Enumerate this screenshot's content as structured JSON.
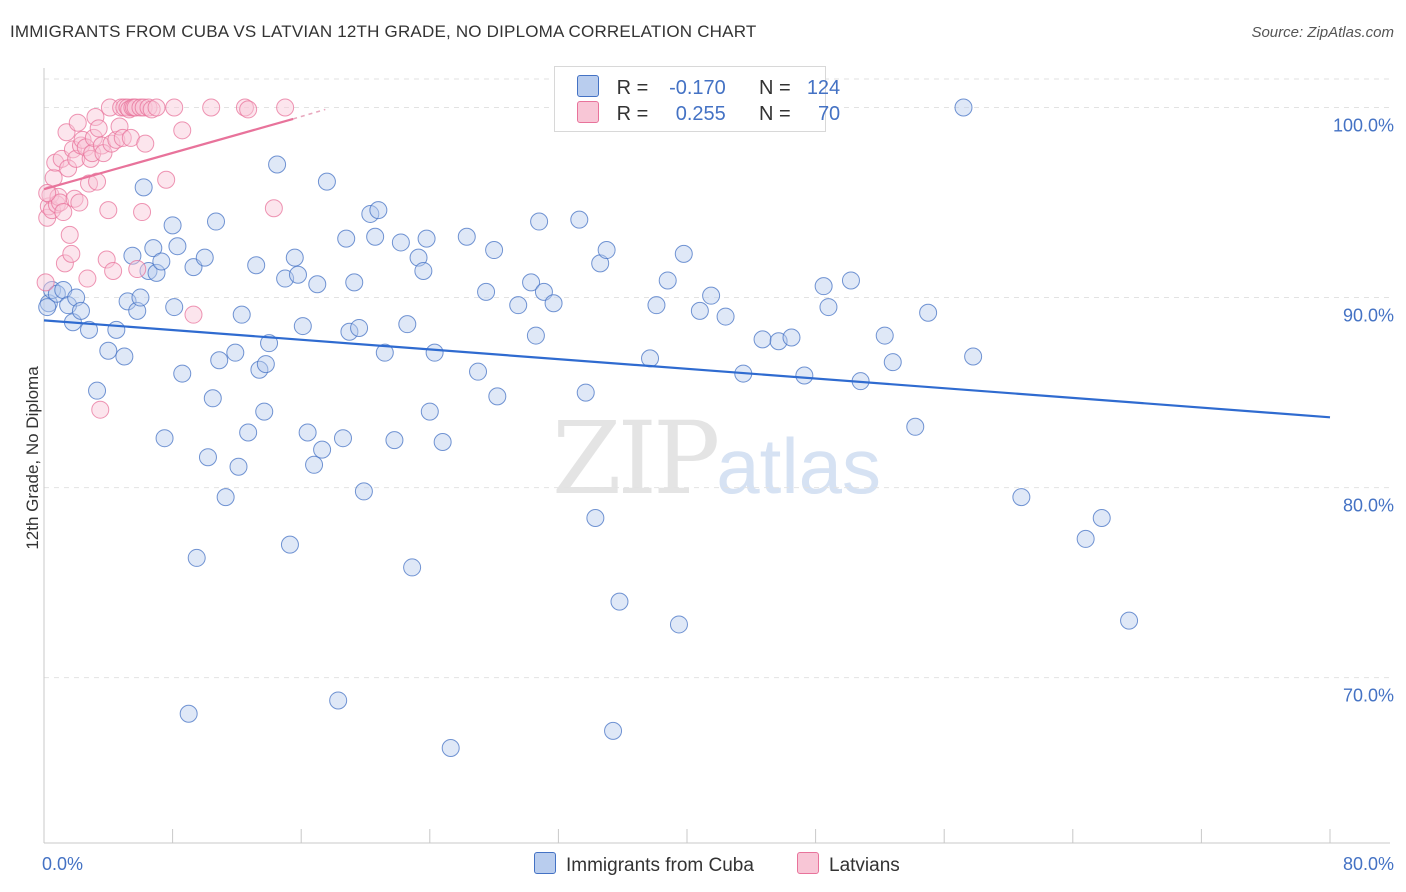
{
  "title": "IMMIGRANTS FROM CUBA VS LATVIAN 12TH GRADE, NO DIPLOMA CORRELATION CHART",
  "source": "Source: ZipAtlas.com",
  "watermark": {
    "zip": "ZIP",
    "atlas": "atlas"
  },
  "legend": {
    "rows": [
      {
        "r_label": "R =",
        "r_value": "-0.170",
        "n_label": "N =",
        "n_value": "124"
      },
      {
        "r_label": "R =",
        "r_value": "0.255",
        "n_label": "N =",
        "n_value": "70"
      }
    ]
  },
  "chart_data": {
    "type": "scatter",
    "title": "IMMIGRANTS FROM CUBA VS LATVIAN 12TH GRADE, NO DIPLOMA CORRELATION CHART",
    "xlabel": "",
    "ylabel": "12th Grade, No Diploma",
    "xlim": [
      0,
      80
    ],
    "ylim": [
      61.3,
      102.5
    ],
    "x_tick_labels": [
      "0.0%",
      "80.0%"
    ],
    "y_ticks": [
      70,
      80,
      90,
      100
    ],
    "y_tick_labels": [
      "70.0%",
      "80.0%",
      "90.0%",
      "100.0%"
    ],
    "grid": true,
    "legend_position": "top-center",
    "colors": {
      "cuba": "#4472c4",
      "latvians": "#e8739b"
    },
    "series": [
      {
        "name": "Immigrants from Cuba",
        "color": "#4472c4",
        "r": -0.17,
        "n": 124,
        "trend": {
          "x": [
            0,
            80
          ],
          "y": [
            88.8,
            83.7
          ]
        },
        "points": [
          [
            0.3,
            89.7
          ],
          [
            0.5,
            90.4
          ],
          [
            0.8,
            90.2
          ],
          [
            1.2,
            90.4
          ],
          [
            1.5,
            89.6
          ],
          [
            1.8,
            88.7
          ],
          [
            2.0,
            90.0
          ],
          [
            2.3,
            89.3
          ],
          [
            2.8,
            88.3
          ],
          [
            3.3,
            85.1
          ],
          [
            4.0,
            87.2
          ],
          [
            4.5,
            88.3
          ],
          [
            5.0,
            86.9
          ],
          [
            5.2,
            89.8
          ],
          [
            5.5,
            92.2
          ],
          [
            5.8,
            89.3
          ],
          [
            6.0,
            90.0
          ],
          [
            6.2,
            95.8
          ],
          [
            6.5,
            91.4
          ],
          [
            6.8,
            92.6
          ],
          [
            7.0,
            91.3
          ],
          [
            7.3,
            91.9
          ],
          [
            7.5,
            82.6
          ],
          [
            8.0,
            93.8
          ],
          [
            8.1,
            89.5
          ],
          [
            8.3,
            92.7
          ],
          [
            8.6,
            86.0
          ],
          [
            9.0,
            68.1
          ],
          [
            9.3,
            91.6
          ],
          [
            9.5,
            76.3
          ],
          [
            10.0,
            92.1
          ],
          [
            10.2,
            81.6
          ],
          [
            10.5,
            84.7
          ],
          [
            10.7,
            94.0
          ],
          [
            10.9,
            86.7
          ],
          [
            11.3,
            79.5
          ],
          [
            11.9,
            87.1
          ],
          [
            12.1,
            81.1
          ],
          [
            12.3,
            89.1
          ],
          [
            12.7,
            82.9
          ],
          [
            13.2,
            91.7
          ],
          [
            13.4,
            86.2
          ],
          [
            13.7,
            84.0
          ],
          [
            13.8,
            86.5
          ],
          [
            14.0,
            87.6
          ],
          [
            14.5,
            97.0
          ],
          [
            15.0,
            91.0
          ],
          [
            15.3,
            77.0
          ],
          [
            15.6,
            92.1
          ],
          [
            15.8,
            91.2
          ],
          [
            16.1,
            88.5
          ],
          [
            16.4,
            82.9
          ],
          [
            16.8,
            81.2
          ],
          [
            17.0,
            90.7
          ],
          [
            17.3,
            82.0
          ],
          [
            17.6,
            96.1
          ],
          [
            18.3,
            68.8
          ],
          [
            18.6,
            82.6
          ],
          [
            18.8,
            93.1
          ],
          [
            19.0,
            88.2
          ],
          [
            19.3,
            90.8
          ],
          [
            19.6,
            88.4
          ],
          [
            19.9,
            79.8
          ],
          [
            20.3,
            94.4
          ],
          [
            20.6,
            93.2
          ],
          [
            20.8,
            94.6
          ],
          [
            21.2,
            87.1
          ],
          [
            21.8,
            82.5
          ],
          [
            22.2,
            92.9
          ],
          [
            22.6,
            88.6
          ],
          [
            22.9,
            75.8
          ],
          [
            23.3,
            92.1
          ],
          [
            23.6,
            91.4
          ],
          [
            23.8,
            93.1
          ],
          [
            24.0,
            84.0
          ],
          [
            24.3,
            87.1
          ],
          [
            24.8,
            82.4
          ],
          [
            25.3,
            66.3
          ],
          [
            26.3,
            93.2
          ],
          [
            27.0,
            86.1
          ],
          [
            27.5,
            90.3
          ],
          [
            28.0,
            92.5
          ],
          [
            28.2,
            84.8
          ],
          [
            29.5,
            89.6
          ],
          [
            30.3,
            90.8
          ],
          [
            30.6,
            88.0
          ],
          [
            30.8,
            94.0
          ],
          [
            31.1,
            90.3
          ],
          [
            31.7,
            89.7
          ],
          [
            33.3,
            94.1
          ],
          [
            33.7,
            85.0
          ],
          [
            34.3,
            78.4
          ],
          [
            34.6,
            91.8
          ],
          [
            35.0,
            92.5
          ],
          [
            35.4,
            67.2
          ],
          [
            35.8,
            74.0
          ],
          [
            37.7,
            86.8
          ],
          [
            38.1,
            89.6
          ],
          [
            38.8,
            90.9
          ],
          [
            39.5,
            72.8
          ],
          [
            39.8,
            92.3
          ],
          [
            40.8,
            89.3
          ],
          [
            41.5,
            90.1
          ],
          [
            42.4,
            89.0
          ],
          [
            43.5,
            86.0
          ],
          [
            44.7,
            87.8
          ],
          [
            45.7,
            87.7
          ],
          [
            46.5,
            87.9
          ],
          [
            47.3,
            85.9
          ],
          [
            48.5,
            90.6
          ],
          [
            48.8,
            89.5
          ],
          [
            50.2,
            90.9
          ],
          [
            50.8,
            85.6
          ],
          [
            52.3,
            88.0
          ],
          [
            52.8,
            86.6
          ],
          [
            54.2,
            83.2
          ],
          [
            55.0,
            89.2
          ],
          [
            57.2,
            100.0
          ],
          [
            57.8,
            86.9
          ],
          [
            60.8,
            79.5
          ],
          [
            64.8,
            77.3
          ],
          [
            65.8,
            78.4
          ],
          [
            67.5,
            73.0
          ],
          [
            0.2,
            89.5
          ]
        ]
      },
      {
        "name": "Latvians",
        "color": "#e8739b",
        "r": 0.255,
        "n": 70,
        "trend": {
          "x": [
            0,
            15.5
          ],
          "y": [
            95.7,
            99.4
          ]
        },
        "trend_dashed": {
          "x": [
            15.5,
            17.5
          ],
          "y": [
            99.4,
            99.9
          ]
        },
        "points": [
          [
            0.1,
            90.8
          ],
          [
            0.2,
            94.2
          ],
          [
            0.3,
            94.8
          ],
          [
            0.4,
            95.4
          ],
          [
            0.5,
            94.6
          ],
          [
            0.6,
            96.3
          ],
          [
            0.7,
            97.1
          ],
          [
            0.8,
            94.9
          ],
          [
            0.9,
            95.3
          ],
          [
            1.0,
            95.0
          ],
          [
            1.1,
            97.3
          ],
          [
            1.2,
            94.5
          ],
          [
            1.3,
            91.8
          ],
          [
            1.4,
            98.7
          ],
          [
            1.5,
            96.8
          ],
          [
            1.6,
            93.3
          ],
          [
            1.7,
            92.3
          ],
          [
            1.8,
            97.8
          ],
          [
            1.9,
            95.2
          ],
          [
            2.0,
            97.3
          ],
          [
            2.1,
            99.2
          ],
          [
            2.2,
            95.0
          ],
          [
            2.3,
            98.0
          ],
          [
            2.4,
            98.3
          ],
          [
            2.6,
            97.9
          ],
          [
            2.7,
            91.0
          ],
          [
            2.8,
            96.0
          ],
          [
            2.9,
            97.3
          ],
          [
            3.0,
            97.6
          ],
          [
            3.1,
            98.4
          ],
          [
            3.2,
            99.5
          ],
          [
            3.3,
            96.1
          ],
          [
            3.4,
            98.9
          ],
          [
            3.5,
            84.1
          ],
          [
            3.6,
            98.0
          ],
          [
            3.7,
            97.6
          ],
          [
            3.9,
            92.0
          ],
          [
            4.0,
            94.6
          ],
          [
            4.1,
            100.0
          ],
          [
            4.2,
            98.1
          ],
          [
            4.3,
            91.4
          ],
          [
            4.5,
            98.3
          ],
          [
            4.7,
            99.0
          ],
          [
            4.8,
            100.0
          ],
          [
            4.9,
            98.4
          ],
          [
            5.0,
            100.0
          ],
          [
            5.2,
            100.0
          ],
          [
            5.3,
            99.9
          ],
          [
            5.4,
            98.4
          ],
          [
            5.5,
            100.0
          ],
          [
            5.6,
            100.0
          ],
          [
            5.7,
            100.0
          ],
          [
            5.8,
            91.5
          ],
          [
            6.0,
            100.0
          ],
          [
            6.1,
            94.5
          ],
          [
            6.2,
            100.0
          ],
          [
            6.3,
            98.1
          ],
          [
            6.5,
            100.0
          ],
          [
            6.7,
            99.9
          ],
          [
            7.0,
            100.0
          ],
          [
            7.6,
            96.2
          ],
          [
            8.1,
            100.0
          ],
          [
            8.6,
            98.8
          ],
          [
            9.3,
            89.1
          ],
          [
            10.4,
            100.0
          ],
          [
            12.5,
            100.0
          ],
          [
            12.7,
            99.9
          ],
          [
            14.3,
            94.7
          ],
          [
            15.0,
            100.0
          ],
          [
            0.2,
            95.5
          ]
        ]
      }
    ]
  },
  "bottom_legend": [
    "Immigrants from Cuba",
    "Latvians"
  ]
}
